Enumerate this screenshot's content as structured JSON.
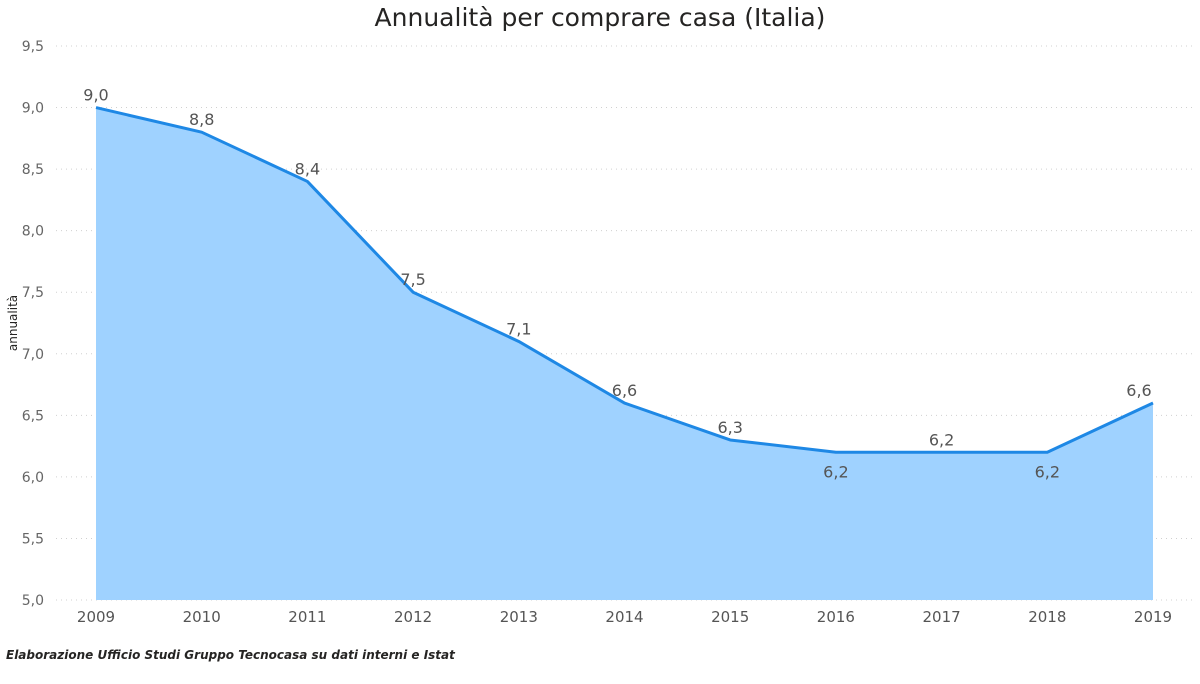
{
  "chart_data": {
    "type": "area",
    "title": "Annualità per comprare casa (Italia)",
    "xlabel": "",
    "ylabel": "annualità",
    "categories": [
      "2009",
      "2010",
      "2011",
      "2012",
      "2013",
      "2014",
      "2015",
      "2016",
      "2017",
      "2018",
      "2019"
    ],
    "values": [
      9.0,
      8.8,
      8.4,
      7.5,
      7.1,
      6.6,
      6.3,
      6.2,
      6.2,
      6.2,
      6.6
    ],
    "data_labels": [
      "9,0",
      "8,8",
      "8,4",
      "7,5",
      "7,1",
      "6,6",
      "6,3",
      "6,2",
      "6,2",
      "6,2",
      "6,6"
    ],
    "ylim": [
      5.0,
      9.5
    ],
    "yticks": [
      "5,0",
      "5,5",
      "6,0",
      "6,5",
      "7,0",
      "7,5",
      "8,0",
      "8,5",
      "9,0",
      "9,5"
    ],
    "grid": true,
    "colors": {
      "line": "#1E88E5",
      "fill": "#9FD2FF",
      "grid": "#D0D0D0"
    }
  },
  "footer": {
    "source": "Elaborazione Ufficio Studi Gruppo Tecnocasa su dati interni e Istat"
  }
}
